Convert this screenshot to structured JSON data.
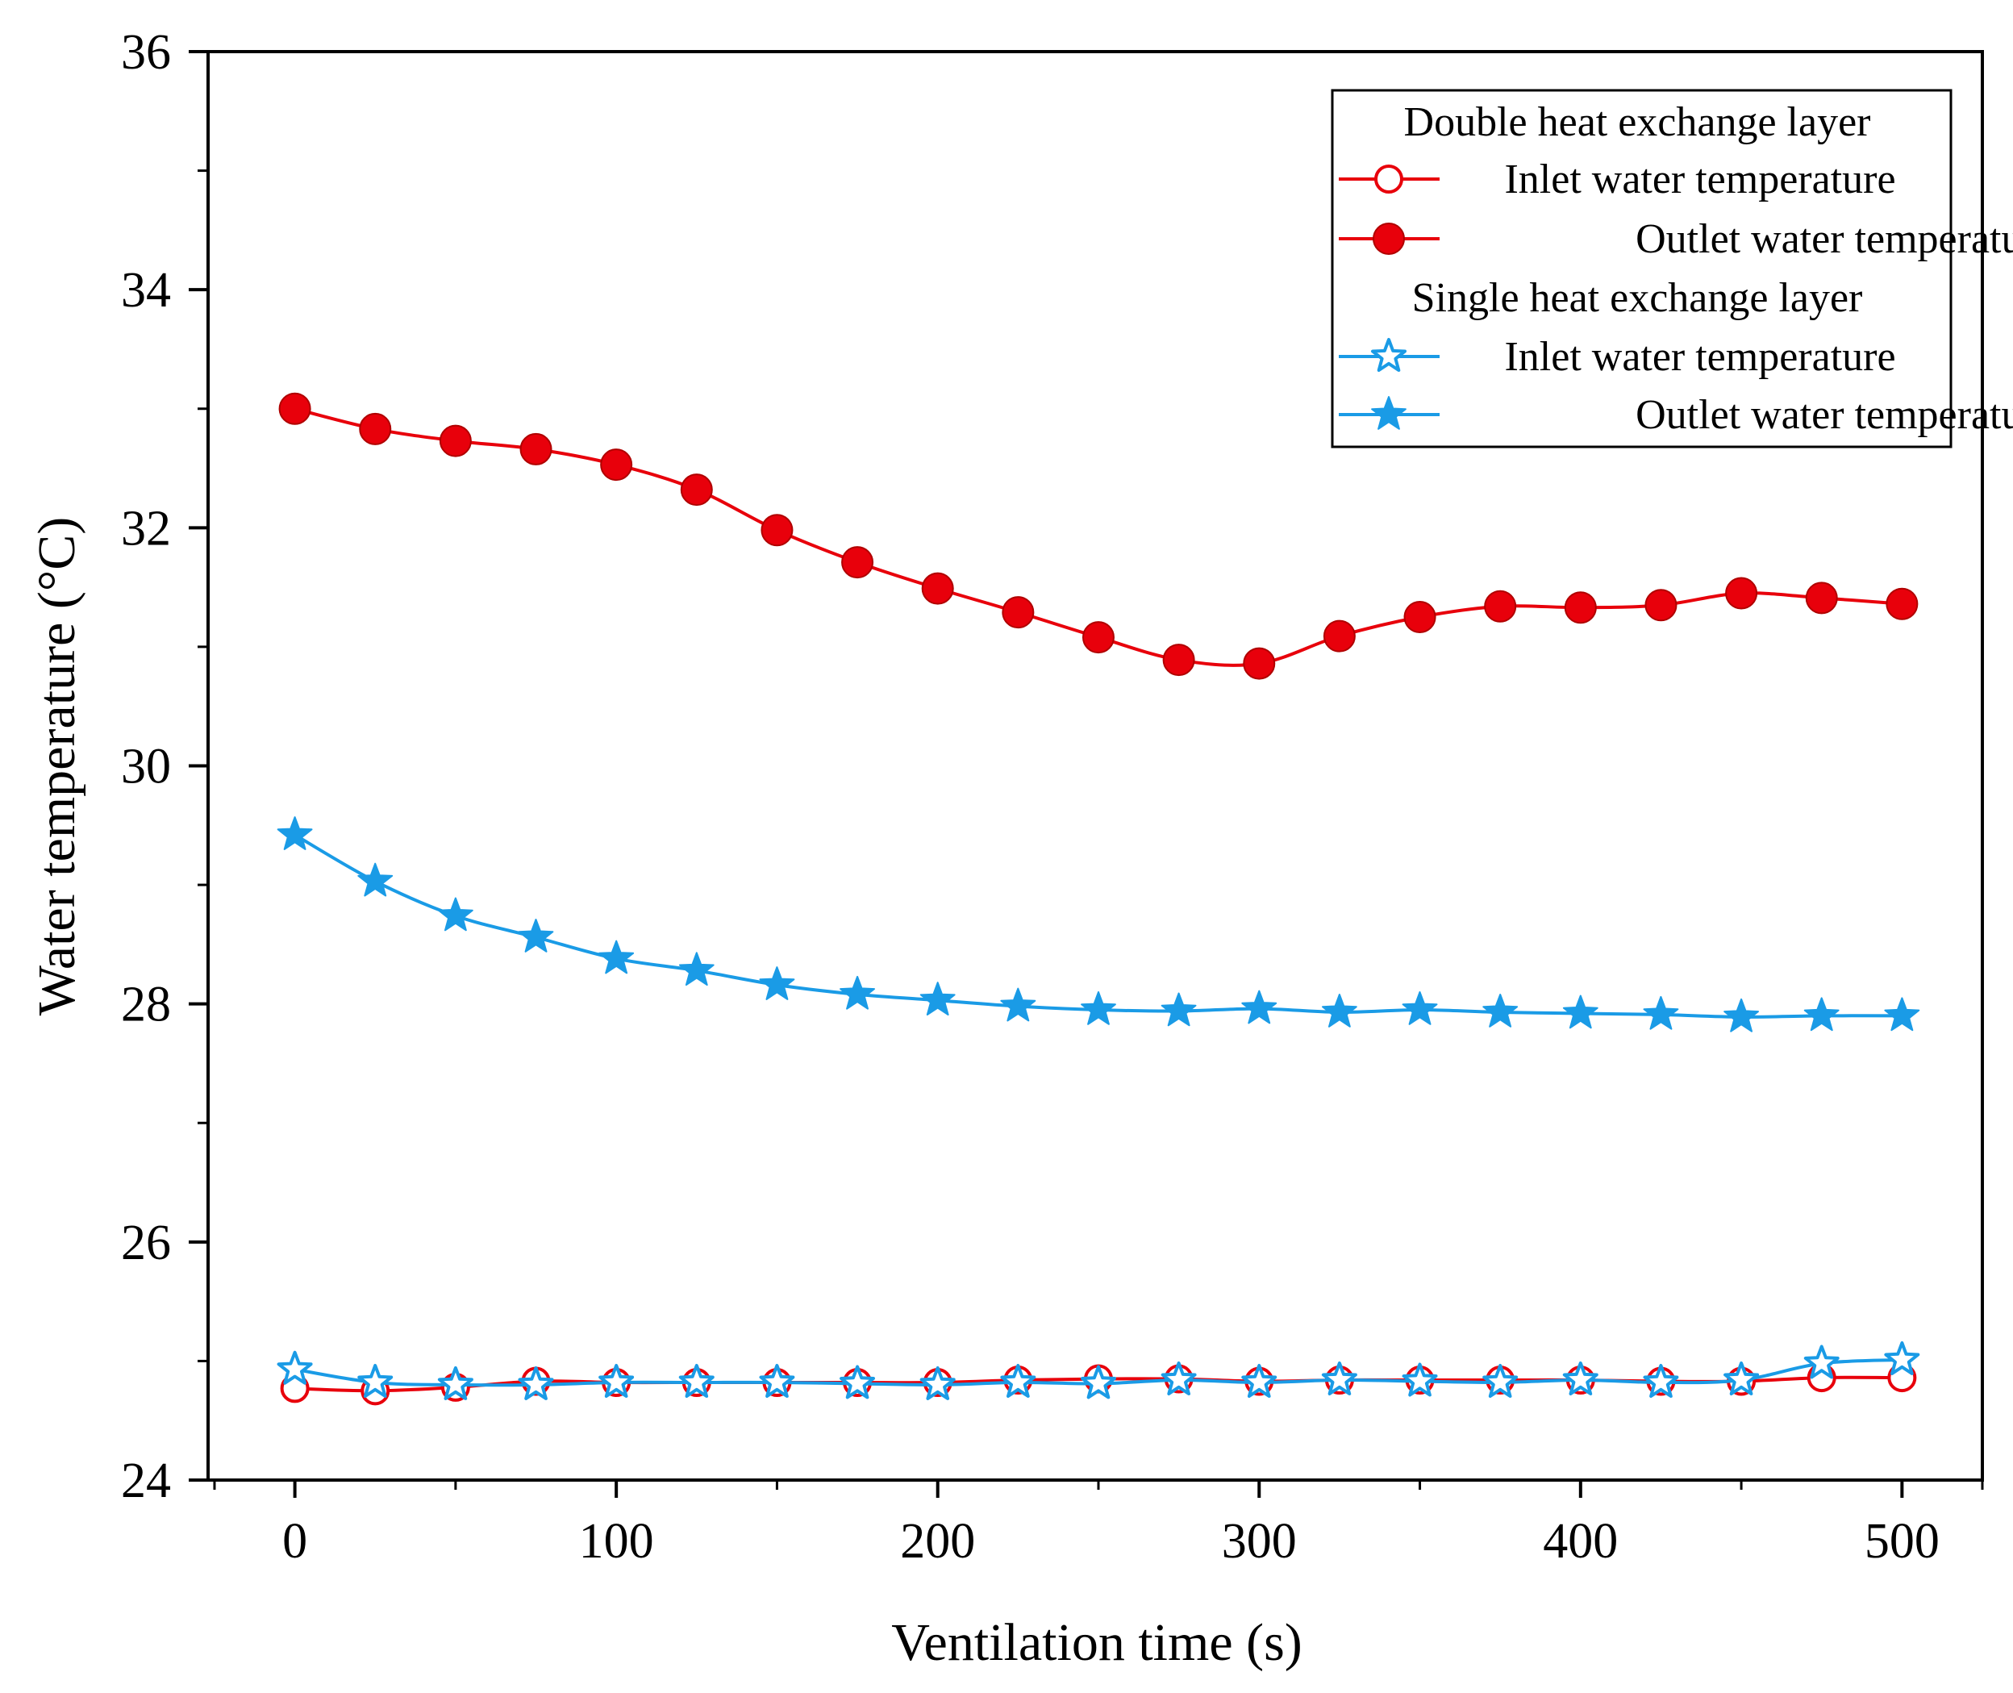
{
  "chart_data": {
    "type": "line",
    "title": "",
    "xlabel": "Ventilation time (s)",
    "ylabel": "Water temperature (°C)",
    "xlim": [
      -27,
      525
    ],
    "ylim": [
      24,
      36
    ],
    "xticks": [
      0,
      100,
      200,
      300,
      400,
      500
    ],
    "yticks": [
      24,
      26,
      28,
      30,
      32,
      34,
      36
    ],
    "grid": false,
    "legend_position": "top-right",
    "x": [
      0,
      25,
      50,
      75,
      100,
      125,
      150,
      175,
      200,
      225,
      250,
      275,
      300,
      325,
      350,
      375,
      400,
      425,
      450,
      475,
      500
    ],
    "legend_groups": [
      {
        "title": "Double heat exchange layer",
        "series": [
          {
            "name": "Inlet water temperature",
            "color": "#e8000b",
            "marker": "circle-open",
            "values": [
              24.77,
              24.75,
              24.78,
              24.83,
              24.82,
              24.82,
              24.82,
              24.82,
              24.82,
              24.84,
              24.85,
              24.85,
              24.83,
              24.84,
              24.84,
              24.84,
              24.84,
              24.83,
              24.83,
              24.86,
              24.86
            ]
          },
          {
            "name": "Outlet water temperature",
            "color": "#e8000b",
            "marker": "circle-filled",
            "values": [
              33.0,
              32.83,
              32.73,
              32.66,
              32.53,
              32.32,
              31.98,
              31.71,
              31.49,
              31.29,
              31.08,
              30.89,
              30.86,
              31.09,
              31.25,
              31.34,
              31.33,
              31.35,
              31.45,
              31.41,
              31.36
            ]
          }
        ]
      },
      {
        "title": "Single heat exchange layer",
        "series": [
          {
            "name": "Inlet water temperature",
            "color": "#1a9be6",
            "marker": "star-open",
            "values": [
              24.93,
              24.82,
              24.8,
              24.8,
              24.82,
              24.82,
              24.82,
              24.81,
              24.8,
              24.82,
              24.81,
              24.84,
              24.82,
              24.84,
              24.83,
              24.82,
              24.84,
              24.82,
              24.84,
              24.98,
              25.01
            ]
          },
          {
            "name": "Outlet water temperature",
            "color": "#1a9be6",
            "marker": "star-filled",
            "values": [
              29.42,
              29.03,
              28.74,
              28.56,
              28.38,
              28.28,
              28.16,
              28.08,
              28.03,
              27.98,
              27.95,
              27.94,
              27.96,
              27.93,
              27.95,
              27.93,
              27.92,
              27.91,
              27.89,
              27.9,
              27.9
            ]
          }
        ]
      }
    ]
  }
}
